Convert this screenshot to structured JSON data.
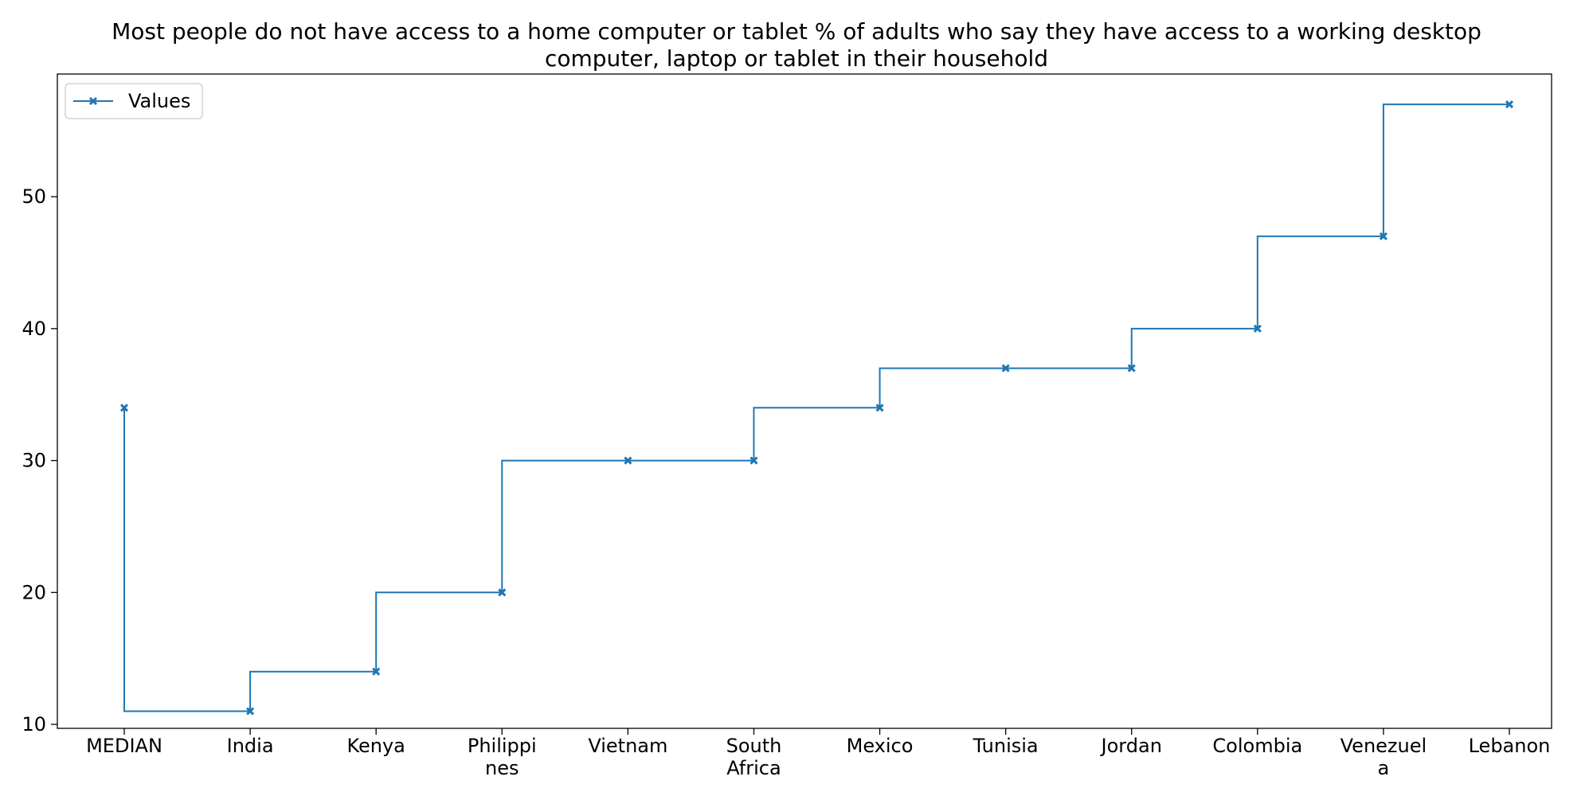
{
  "chart_data": {
    "type": "line",
    "line_style": "steps-pre",
    "title_lines": [
      "Most people do not have access to a home computer or tablet % of adults who say they have access to a working desktop",
      "computer, laptop or tablet in their household"
    ],
    "xlabel": "",
    "ylabel": "",
    "categories": [
      [
        "MEDIAN"
      ],
      [
        "India"
      ],
      [
        "Kenya"
      ],
      [
        "Philippi",
        "nes"
      ],
      [
        "Vietnam"
      ],
      [
        "South",
        "Africa"
      ],
      [
        "Mexico"
      ],
      [
        "Tunisia"
      ],
      [
        "Jordan"
      ],
      [
        "Colombia"
      ],
      [
        "Venezuel",
        "a"
      ],
      [
        "Lebanon"
      ]
    ],
    "series": [
      {
        "name": "Values",
        "color": "#1f77b4",
        "marker": "x",
        "values": [
          34,
          11,
          14,
          20,
          30,
          30,
          34,
          37,
          37,
          40,
          47,
          57
        ]
      }
    ],
    "ylim": [
      9.7,
      59.3
    ],
    "y_ticks": [
      10,
      20,
      30,
      40,
      50
    ],
    "grid": false,
    "legend": {
      "position": "top-left"
    }
  }
}
